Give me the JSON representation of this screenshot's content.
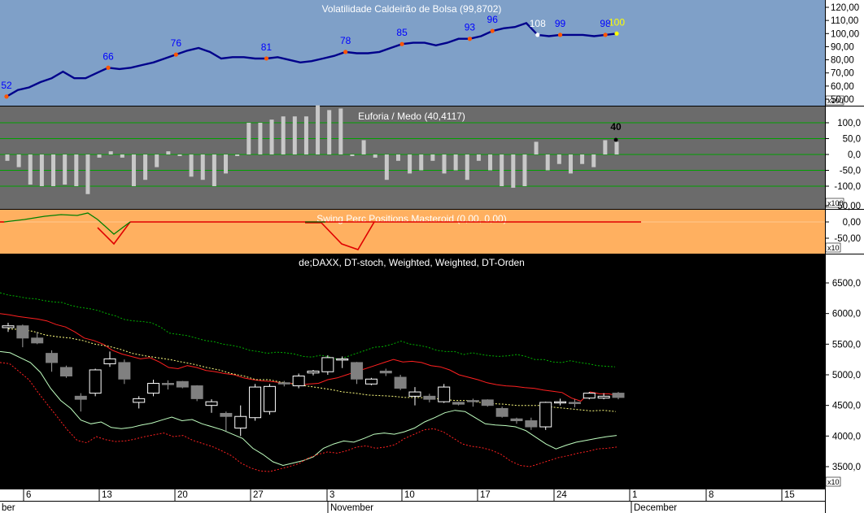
{
  "panels": {
    "volatility": {
      "title": "Volatilidade Caldeirão de Bolsa (99,8702)",
      "y_ticks": [
        "120,00",
        "110,00",
        "100,00",
        "90,00",
        "80,00",
        "70,00",
        "60,00",
        "50,00"
      ],
      "scale_tag": "x100"
    },
    "euforia": {
      "title": "Euforia / Medo (40,4117)",
      "last_label": "40",
      "y_ticks": [
        "100,0",
        "50,0",
        "0,0",
        "-50,0",
        "-100,0"
      ],
      "scale_tag": "x100"
    },
    "swing": {
      "title": "Swing Perc Positions Masteroid (0,00, 0,00)",
      "y_ticks": [
        "50,00",
        "0,00",
        "-50,00"
      ],
      "scale_tag": "x10"
    },
    "price": {
      "title": "de;DAXX, DT-stoch, Weighted, Weighted, DT-Orden",
      "y_ticks": [
        "6500,0",
        "6000,0",
        "5500,0",
        "5000,0",
        "4500,0",
        "4000,0",
        "3500,0"
      ],
      "scale_tag": "x10"
    }
  },
  "x_axis": {
    "day_ticks": [
      "6",
      "13",
      "20",
      "27",
      "3",
      "10",
      "17",
      "24",
      "1",
      "8",
      "15"
    ],
    "months": [
      "ber",
      "November",
      "December"
    ]
  },
  "colors": {
    "vol_bg": "#7fa0c8",
    "vol_line": "#00008b",
    "euforia_bg": "#6b6b6b",
    "swing_bg": "#ffb060",
    "price_bg": "#000000",
    "up_candle": "#ffffff",
    "down_candle": "#808080",
    "red_band": "#ff2020",
    "green_band": "#00c000",
    "yellow_ma": "#ffff80",
    "light_green": "#c0ffc0"
  },
  "chart_data": [
    {
      "type": "line",
      "title": "Volatilidade Caldeirão de Bolsa (99,8702)",
      "ylim": [
        50,
        125
      ],
      "series": [
        {
          "values": [
            52,
            57,
            59,
            63,
            66,
            71,
            66,
            66,
            70,
            74,
            73,
            74,
            76,
            78,
            81,
            84,
            87,
            89,
            86,
            81,
            82,
            82,
            81,
            81,
            82,
            80,
            78,
            79,
            81,
            83,
            86,
            85,
            85,
            86,
            89,
            92,
            93,
            93,
            91,
            93,
            96,
            96,
            98,
            102,
            104,
            105,
            108,
            99,
            98,
            99,
            99,
            99,
            98,
            99,
            100
          ]
        }
      ],
      "point_labels": [
        {
          "i": 0,
          "text": "52"
        },
        {
          "i": 7,
          "text": "66"
        },
        {
          "i": 11,
          "text": "76"
        },
        {
          "i": 17,
          "text": "81"
        },
        {
          "i": 22,
          "text": "78"
        },
        {
          "i": 26,
          "text": "85"
        },
        {
          "i": 30,
          "text": "93"
        },
        {
          "i": 32,
          "text": "96"
        },
        {
          "i": 35,
          "text": "108"
        },
        {
          "i": 36,
          "text": "99"
        },
        {
          "i": 39,
          "text": "98"
        },
        {
          "i": 40,
          "text": "100"
        }
      ]
    },
    {
      "type": "bar",
      "title": "Euforia / Medo (40,4117)",
      "ylim": [
        -160,
        150
      ],
      "values": [
        -20,
        -40,
        -95,
        -100,
        -100,
        -95,
        -100,
        -125,
        -10,
        10,
        -10,
        -100,
        -80,
        -40,
        10,
        -5,
        -70,
        -80,
        -100,
        -60,
        -5,
        100,
        100,
        110,
        120,
        120,
        120,
        155,
        140,
        145,
        -5,
        45,
        -10,
        -80,
        -20,
        -60,
        -50,
        -20,
        -60,
        -50,
        -80,
        -20,
        -50,
        -100,
        -105,
        -100,
        40,
        -50,
        -30,
        -60,
        -30,
        -40,
        45,
        40
      ]
    },
    {
      "type": "line",
      "title": "Swing Perc Positions Masteroid (0,00, 0,00)",
      "ylim": [
        -75,
        75
      ],
      "series": [
        {
          "values": [
            0,
            8,
            20,
            28,
            30,
            28,
            35,
            15,
            -40,
            0,
            0,
            0,
            0,
            0,
            0,
            0,
            0,
            0,
            0,
            0,
            0,
            0,
            0,
            0,
            0,
            0,
            0,
            0,
            0,
            0,
            0,
            0,
            0,
            0,
            0,
            0,
            0,
            0,
            0,
            0,
            0,
            0,
            0,
            0,
            0,
            0
          ]
        },
        {
          "values": [
            0,
            0,
            0,
            0,
            0,
            0,
            0,
            0,
            -50,
            -95,
            -30,
            0,
            0,
            0,
            0,
            0,
            0,
            0,
            0,
            0,
            0,
            0,
            0,
            0,
            0,
            0,
            0,
            0,
            0,
            0,
            0,
            0,
            -55,
            -85,
            -100,
            0,
            0,
            0,
            0,
            0,
            0,
            0,
            0,
            0,
            0,
            0
          ]
        }
      ]
    },
    {
      "type": "candlestick",
      "title": "de;DAXX, DT-stoch, Weighted, Weighted, DT-Orden",
      "ylim": [
        3300,
        6600
      ],
      "candles": [
        [
          5770,
          5850,
          5700,
          5800
        ],
        [
          5800,
          5820,
          5450,
          5600
        ],
        [
          5600,
          5700,
          5500,
          5520
        ],
        [
          5350,
          5400,
          5050,
          5200
        ],
        [
          5120,
          5150,
          4950,
          4980
        ],
        [
          4650,
          4700,
          4400,
          4600
        ],
        [
          4700,
          5100,
          4650,
          5080
        ],
        [
          5180,
          5380,
          5130,
          5260
        ],
        [
          5200,
          5250,
          4850,
          4930
        ],
        [
          4550,
          4650,
          4450,
          4610
        ],
        [
          4700,
          4920,
          4650,
          4860
        ],
        [
          4860,
          4910,
          4760,
          4850
        ],
        [
          4890,
          4900,
          4780,
          4800
        ],
        [
          4820,
          4830,
          4570,
          4610
        ],
        [
          4500,
          4600,
          4380,
          4560
        ],
        [
          4370,
          4400,
          4080,
          4320
        ],
        [
          4130,
          4500,
          4000,
          4320
        ],
        [
          4300,
          4850,
          4250,
          4800
        ],
        [
          4400,
          4850,
          4350,
          4810
        ],
        [
          4870,
          4900,
          4810,
          4860
        ],
        [
          4820,
          5020,
          4780,
          4980
        ],
        [
          5030,
          5080,
          4990,
          5060
        ],
        [
          5050,
          5320,
          5000,
          5280
        ],
        [
          5240,
          5300,
          5110,
          5260
        ],
        [
          5200,
          5210,
          4850,
          4930
        ],
        [
          4850,
          4950,
          4830,
          4930
        ],
        [
          5060,
          5100,
          4980,
          5030
        ],
        [
          4960,
          5000,
          4750,
          4780
        ],
        [
          4650,
          4800,
          4500,
          4720
        ],
        [
          4650,
          4690,
          4550,
          4600
        ],
        [
          4560,
          4850,
          4540,
          4800
        ],
        [
          4550,
          4560,
          4500,
          4520
        ],
        [
          4580,
          4610,
          4480,
          4560
        ],
        [
          4590,
          4600,
          4480,
          4500
        ],
        [
          4450,
          4480,
          4300,
          4320
        ],
        [
          4280,
          4300,
          4200,
          4250
        ],
        [
          4250,
          4300,
          4100,
          4150
        ],
        [
          4150,
          4560,
          4100,
          4550
        ],
        [
          4550,
          4610,
          4500,
          4560
        ],
        [
          4550,
          4600,
          4470,
          4540
        ],
        [
          4620,
          4720,
          4600,
          4700
        ],
        [
          4620,
          4700,
          4600,
          4650
        ],
        [
          4700,
          4720,
          4600,
          4630
        ]
      ],
      "series": [
        {
          "values": [
            6340,
            6300,
            6280,
            6250,
            6240,
            6210,
            6190,
            6180,
            6130,
            6100,
            6080,
            6050,
            6000,
            5960,
            5900,
            5880,
            5870,
            5850,
            5780,
            5680,
            5660,
            5640,
            5600,
            5560,
            5540,
            5500,
            5480,
            5450,
            5400,
            5380,
            5350,
            5370,
            5360,
            5340,
            5300,
            5290,
            5320,
            5290,
            5250,
            5300,
            5350,
            5400,
            5450,
            5460,
            5500,
            5550,
            5500,
            5480,
            5450,
            5400,
            5380,
            5380,
            5330,
            5360,
            5330,
            5310,
            5300,
            5310,
            5330,
            5300,
            5250,
            5250,
            5210,
            5200,
            5230,
            5200,
            5180,
            5150,
            5140,
            5130
          ]
        },
        {
          "values": [
            6000,
            5980,
            5950,
            5930,
            5910,
            5880,
            5820,
            5780,
            5700,
            5600,
            5560,
            5500,
            5400,
            5340,
            5300,
            5260,
            5280,
            5210,
            5120,
            5100,
            5150,
            5120,
            5070,
            5050,
            5020,
            5000,
            4950,
            4920,
            4900,
            4890,
            4870,
            4860,
            4830,
            4850,
            4860,
            4920,
            4950,
            5000,
            5050,
            5100,
            5150,
            5200,
            5250,
            5210,
            5220,
            5200,
            5150,
            5130,
            5080,
            5000,
            4960,
            4920,
            4870,
            4840,
            4820,
            4810,
            4790,
            4780,
            4750,
            4730,
            4710,
            4620,
            4570,
            4720,
            4690,
            4690,
            4650
          ]
        },
        {
          "values": [
            5750,
            5740,
            5710,
            5650,
            5620,
            5600,
            5560,
            5500,
            5470,
            5420,
            5350,
            5310,
            5280,
            5250,
            5210,
            5170,
            5120,
            5080,
            5020,
            4980,
            4920,
            4920,
            4880,
            4850,
            4820,
            4790,
            4760,
            4720,
            4700,
            4670,
            4660,
            4650,
            4630,
            4630,
            4620,
            4600,
            4580,
            4580,
            4550,
            4530,
            4520,
            4500,
            4500,
            4500,
            4470,
            4450,
            4430,
            4410,
            4420,
            4400
          ]
        },
        {
          "values": [
            5380,
            5360,
            5280,
            5200,
            5040,
            4780,
            4580,
            4450,
            4260,
            4200,
            4230,
            4140,
            4120,
            4140,
            4180,
            4210,
            4260,
            4310,
            4250,
            4270,
            4200,
            4150,
            4100,
            4030,
            3960,
            3800,
            3700,
            3580,
            3520,
            3560,
            3600,
            3660,
            3800,
            3870,
            3920,
            3900,
            3960,
            4030,
            4050,
            4030,
            4070,
            4130,
            4230,
            4300,
            4380,
            4420,
            4400,
            4300,
            4200,
            4180,
            4170,
            4150,
            4090,
            3980,
            3870,
            3790,
            3850,
            3900,
            3930,
            3960,
            3990,
            4010
          ]
        },
        {
          "values": [
            5200,
            5180,
            5050,
            4920,
            4700,
            4500,
            4300,
            4100,
            3930,
            3890,
            3990,
            3940,
            3910,
            3920,
            3950,
            3990,
            4020,
            4050,
            3990,
            4010,
            3930,
            3880,
            3830,
            3760,
            3680,
            3560,
            3480,
            3430,
            3420,
            3460,
            3500,
            3550,
            3640,
            3700,
            3740,
            3720,
            3760,
            3820,
            3840,
            3800,
            3820,
            3860,
            3960,
            4030,
            4100,
            4120,
            4070,
            3970,
            3870,
            3830,
            3810,
            3770,
            3700,
            3590,
            3520,
            3500,
            3550,
            3600,
            3650,
            3680,
            3720,
            3750,
            3790,
            3800,
            3820
          ]
        }
      ]
    }
  ]
}
